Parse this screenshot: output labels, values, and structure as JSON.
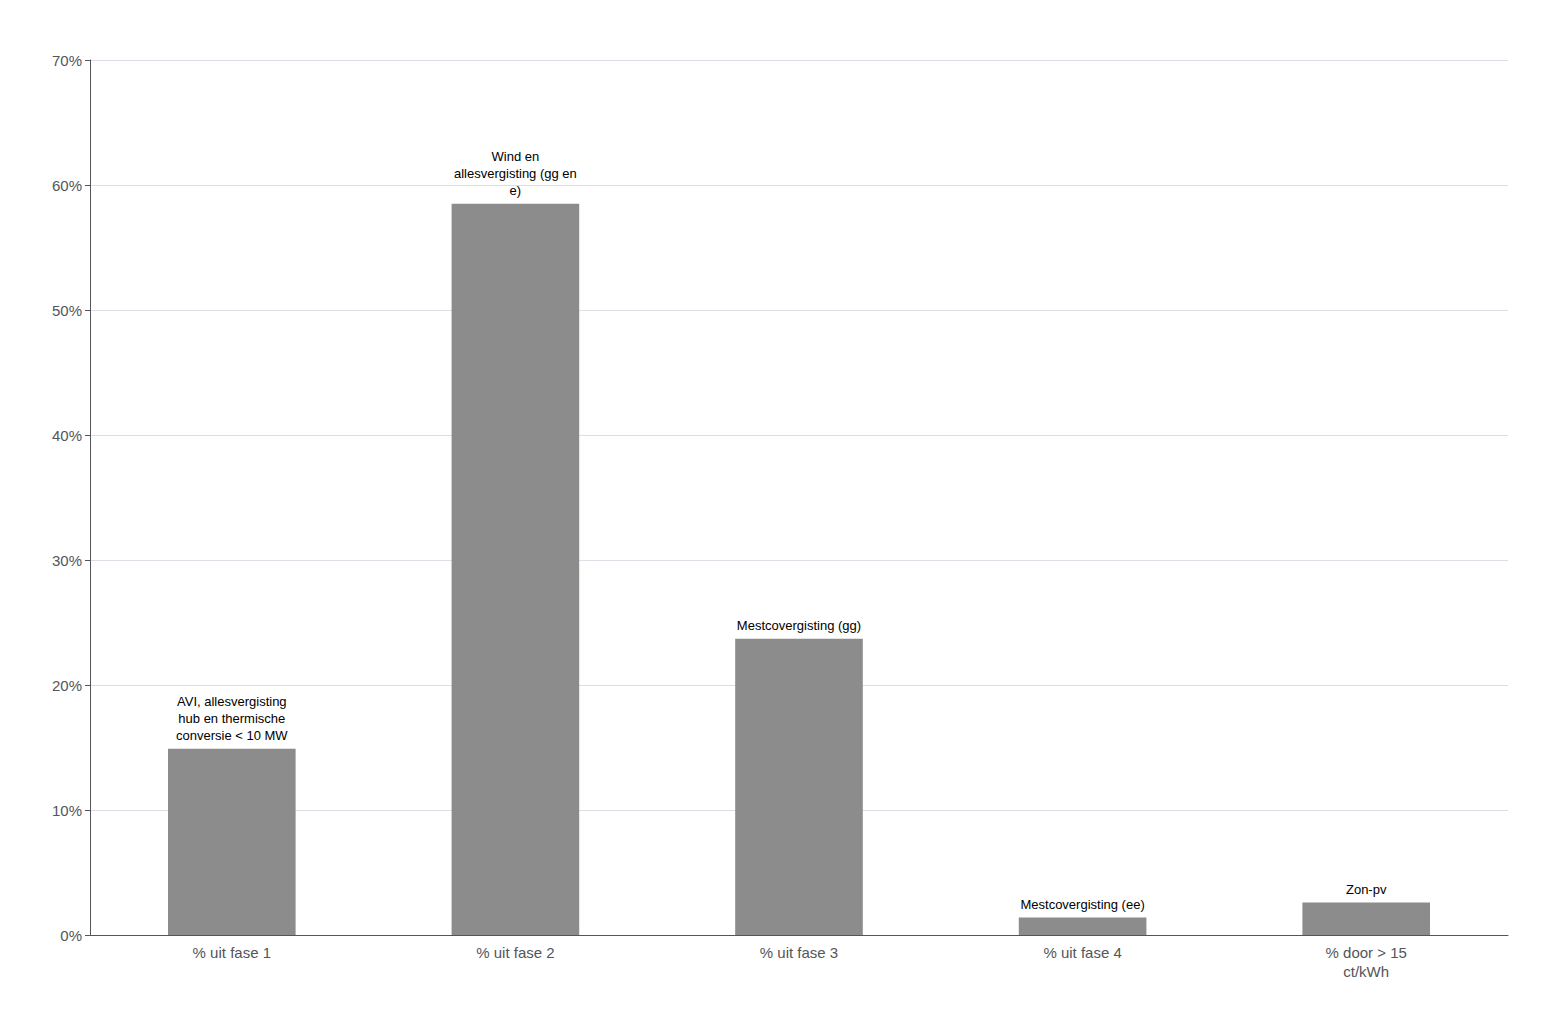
{
  "chart_data": {
    "type": "bar",
    "categories": [
      "% uit fase 1",
      "% uit fase 2",
      "% uit fase 3",
      "% uit fase 4",
      "% door > 15\nct/kWh"
    ],
    "values": [
      0.149,
      0.585,
      0.237,
      0.014,
      0.026
    ],
    "color": "#8C8C8C",
    "ylim": [
      0,
      0.7
    ],
    "yticks": [
      {
        "value": 0.0,
        "label": "0%"
      },
      {
        "value": 0.1,
        "label": "10%"
      },
      {
        "value": 0.2,
        "label": "20%"
      },
      {
        "value": 0.3,
        "label": "30%"
      },
      {
        "value": 0.4,
        "label": "40%"
      },
      {
        "value": 0.5,
        "label": "50%"
      },
      {
        "value": 0.6,
        "label": "60%"
      },
      {
        "value": 0.7,
        "label": "70%"
      }
    ],
    "annotations": [
      {
        "category": "% uit fase 1",
        "text": "AVI, allesvergisting\nhub en thermische\nconversie < 10 MW"
      },
      {
        "category": "% uit fase 2",
        "text": "Wind en\nallesvergisting (gg en\ne)"
      },
      {
        "category": "% uit fase 3",
        "text": "Mestcovergisting (gg)"
      },
      {
        "category": "% uit fase 4",
        "text": "Mestcovergisting (ee)"
      },
      {
        "category": "% door > 15\nct/kWh",
        "text": "Zon-pv"
      }
    ],
    "grid": true
  }
}
